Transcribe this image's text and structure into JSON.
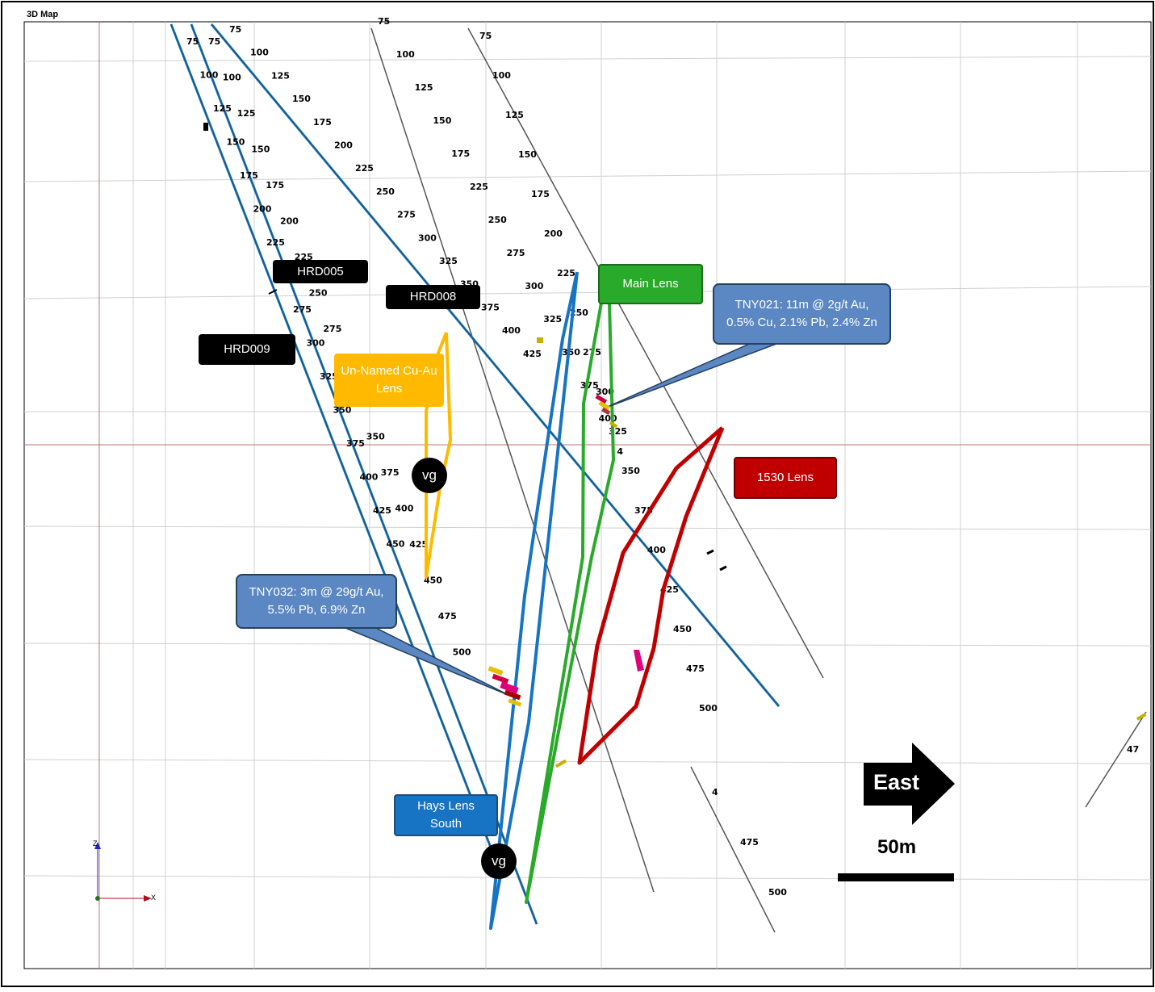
{
  "title": "3D Map",
  "labels": {
    "hrd005": "HRD005",
    "hrd008": "HRD008",
    "hrd009": "HRD009",
    "main_lens": "Main Lens",
    "unnamed_lens": "Un-Named Cu-Au Lens",
    "lens_1530": "1530 Lens",
    "hays_lens": "Hays Lens South",
    "tny021": "TNY021: 11m @ 2g/t Au, 0.5% Cu, 2.1% Pb, 2.4% Zn",
    "tny032": "TNY032: 3m @ 29g/t Au, 5.5% Pb, 6.9% Zn",
    "vg1": "vg",
    "vg2": "vg"
  },
  "compass": {
    "direction": "East"
  },
  "scale": {
    "label": "50m"
  },
  "axes": {
    "z": "Z",
    "x": "X"
  },
  "colors": {
    "drillhole_blue": "#1f77b4",
    "drillhole_grey": "#555555",
    "hays_lens": "#1773c3",
    "main_lens": "#2aaa2a",
    "unnamed_lens": "#ffba00",
    "lens_1530": "#c00000",
    "grid": "#d0d0d0",
    "section_line": "#c07070"
  },
  "depth_ticks": {
    "blue_1": [
      "75",
      "100",
      "125",
      "150",
      "175",
      "200",
      "225",
      "250",
      "275",
      "300",
      "325",
      "350",
      "375",
      "400",
      "425",
      "450"
    ],
    "blue_2": [
      "75",
      "100",
      "125",
      "150",
      "175",
      "200",
      "225",
      "250",
      "275",
      "300",
      "325",
      "350",
      "375",
      "400",
      "425",
      "450",
      "475",
      "500"
    ],
    "blue_3": [
      "75",
      "100",
      "125",
      "150",
      "175",
      "200",
      "225",
      "250",
      "275",
      "300",
      "325",
      "350",
      "375",
      "400",
      "425"
    ],
    "grey_1": [
      "75",
      "100",
      "125",
      "150",
      "175",
      "200",
      "225",
      "250",
      "275",
      "300",
      "325",
      "350",
      "375",
      "400",
      "425",
      "450",
      "475",
      "500"
    ],
    "grey_2": [
      "75",
      "100",
      "125",
      "150",
      "175",
      "225",
      "250",
      "275",
      "300",
      "325",
      "350",
      "375",
      "400",
      "4"
    ],
    "grey_3": [
      "4",
      "475",
      "500"
    ],
    "grey_4": [
      "47"
    ]
  }
}
